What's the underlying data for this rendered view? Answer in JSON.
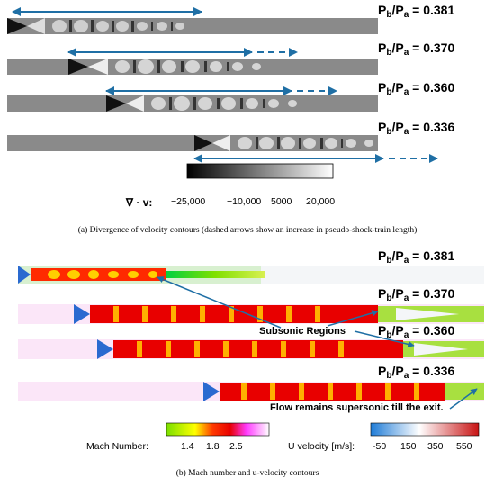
{
  "panel_a": {
    "rows": [
      {
        "ratio_main": "P",
        "ratio_sub1": "b",
        "ratio_slash": "/P",
        "ratio_sub2": "a",
        "ratio_value": " = 0.381"
      },
      {
        "ratio_main": "P",
        "ratio_sub1": "b",
        "ratio_slash": "/P",
        "ratio_sub2": "a",
        "ratio_value": " = 0.370"
      },
      {
        "ratio_main": "P",
        "ratio_sub1": "b",
        "ratio_slash": "/P",
        "ratio_sub2": "a",
        "ratio_value": " = 0.360"
      },
      {
        "ratio_main": "P",
        "ratio_sub1": "b",
        "ratio_slash": "/P",
        "ratio_sub2": "a",
        "ratio_value": " = 0.336"
      }
    ],
    "colorbar": {
      "label": "∇ · v:",
      "ticks": [
        "−25,000",
        "−10,000",
        "5000",
        "20,000"
      ]
    },
    "caption_tag": "(a)",
    "caption_text": " Divergence of velocity contours (dashed arrows show an increase in pseudo-shock-train length)"
  },
  "panel_b": {
    "rows": [
      {
        "ratio_main": "P",
        "ratio_sub1": "b",
        "ratio_slash": "/P",
        "ratio_sub2": "a",
        "ratio_value": " = 0.381"
      },
      {
        "ratio_main": "P",
        "ratio_sub1": "b",
        "ratio_slash": "/P",
        "ratio_sub2": "a",
        "ratio_value": " = 0.370"
      },
      {
        "ratio_main": "P",
        "ratio_sub1": "b",
        "ratio_slash": "/P",
        "ratio_sub2": "a",
        "ratio_value": " = 0.360"
      },
      {
        "ratio_main": "P",
        "ratio_sub1": "b",
        "ratio_slash": "/P",
        "ratio_sub2": "a",
        "ratio_value": " = 0.336"
      }
    ],
    "annotations": {
      "subsonic": "Subsonic Regions",
      "supersonic": "Flow remains supersonic till the exit."
    },
    "mach_colorbar": {
      "label": "Mach Number:",
      "ticks": [
        "1.4",
        "1.8",
        "2.5"
      ]
    },
    "u_colorbar": {
      "label": "U velocity [m/s]:",
      "ticks": [
        "-50",
        "150",
        "350",
        "550"
      ]
    },
    "caption_tag": "(b)",
    "caption_text": " Mach number and u-velocity contours"
  },
  "colors": {
    "arrow": "#1f6fa5",
    "duct_gray": "#8a8a8a"
  }
}
